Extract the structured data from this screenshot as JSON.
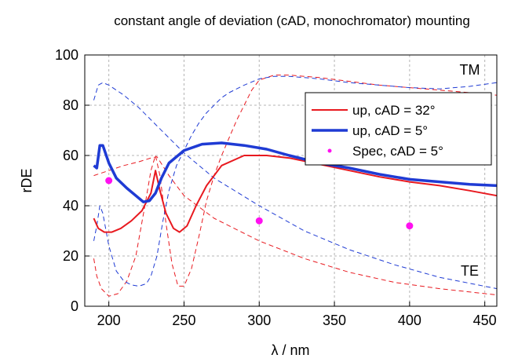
{
  "chart_data": {
    "type": "line",
    "title": "constant angle of deviation (cAD, monochromator) mounting",
    "xlabel": "λ / nm",
    "ylabel": "rDE",
    "xlim": [
      184,
      458
    ],
    "ylim": [
      0,
      100
    ],
    "xticks": [
      200,
      250,
      300,
      350,
      400,
      450
    ],
    "yticks": [
      0,
      20,
      40,
      60,
      80,
      100
    ],
    "grid": true,
    "legend_position": "top-right",
    "annotations": [
      {
        "text": "TM",
        "x": 440,
        "y": 94
      },
      {
        "text": "TE",
        "x": 440,
        "y": 14
      }
    ],
    "colors": {
      "red": "#e8191f",
      "blue": "#1f3bd4",
      "magenta": "#ff10f0"
    },
    "series": [
      {
        "name": "up, cAD = 32°",
        "style": "solid",
        "color": "#e8191f",
        "width": 2,
        "x": [
          190,
          193,
          197,
          202,
          208,
          215,
          222,
          228,
          231,
          234,
          238,
          243,
          247,
          252,
          258,
          265,
          275,
          290,
          305,
          320,
          340,
          360,
          380,
          400,
          420,
          440,
          458
        ],
        "y": [
          35,
          31,
          29.5,
          29.5,
          31,
          34,
          38,
          45,
          54,
          46,
          37,
          31,
          29.5,
          32,
          40,
          48,
          56,
          60,
          60,
          59,
          56.5,
          54,
          51.5,
          49.5,
          48,
          46,
          44
        ]
      },
      {
        "name": "up, cAD = 5°",
        "style": "solid",
        "color": "#1f3bd4",
        "width": 3.5,
        "x": [
          190,
          192,
          194,
          196,
          200,
          205,
          212,
          218,
          223,
          227,
          231,
          235,
          240,
          250,
          262,
          275,
          290,
          305,
          320,
          340,
          360,
          380,
          400,
          420,
          440,
          458
        ],
        "y": [
          56,
          55,
          64,
          64,
          57,
          51,
          47,
          44,
          41.5,
          42,
          45,
          51,
          57,
          62,
          64.5,
          65,
          64,
          62.5,
          60,
          57,
          55,
          52.5,
          50.5,
          49.5,
          48.5,
          48
        ]
      },
      {
        "name": "red TM dashed",
        "style": "dashed",
        "color": "#e8191f",
        "width": 1,
        "x": [
          190,
          192,
          195,
          200,
          206,
          212,
          218,
          224,
          228,
          231,
          234,
          238,
          242,
          246,
          250,
          255,
          260,
          265,
          270,
          275,
          280,
          285,
          290,
          295,
          300,
          310,
          320,
          330,
          340,
          360,
          380,
          400,
          420,
          440,
          458
        ],
        "y": [
          19,
          12,
          7,
          4,
          5,
          10,
          20,
          40,
          54,
          60,
          52,
          33,
          17,
          8,
          8,
          15,
          28,
          42,
          52,
          60,
          67,
          74,
          80,
          86,
          90,
          92,
          92,
          91.5,
          91,
          89.5,
          88,
          87,
          86,
          85,
          84
        ]
      },
      {
        "name": "blue TM dashed",
        "style": "dashed",
        "color": "#1f3bd4",
        "width": 1,
        "x": [
          190,
          192,
          194,
          196,
          200,
          205,
          210,
          215,
          220,
          225,
          228,
          232,
          236,
          240,
          245,
          250,
          255,
          260,
          265,
          270,
          275,
          280,
          290,
          300,
          310,
          320,
          340,
          360,
          380,
          400,
          420,
          440,
          458
        ],
        "y": [
          26,
          32,
          40,
          37,
          24,
          14,
          10,
          8.5,
          8,
          9,
          12,
          20,
          34,
          46,
          56,
          62,
          68,
          73,
          77,
          80,
          83,
          85,
          88,
          90.5,
          91.5,
          91.5,
          90.5,
          89,
          88,
          87,
          86.5,
          87.5,
          89
        ]
      },
      {
        "name": "red TE dashed",
        "style": "dashed",
        "color": "#e8191f",
        "width": 1,
        "x": [
          190,
          200,
          210,
          220,
          228,
          232,
          240,
          250,
          270,
          300,
          330,
          360,
          390,
          420,
          458
        ],
        "y": [
          52,
          54,
          56,
          57.5,
          59,
          59.5,
          52,
          44,
          35,
          26,
          19,
          13.5,
          9.5,
          7,
          4.5
        ]
      },
      {
        "name": "blue TE dashed",
        "style": "dashed",
        "color": "#1f3bd4",
        "width": 1,
        "x": [
          190,
          193,
          196,
          200,
          210,
          220,
          230,
          240,
          250,
          270,
          300,
          330,
          360,
          390,
          420,
          458
        ],
        "y": [
          82,
          88,
          89,
          88,
          84,
          79,
          73,
          67,
          61,
          51,
          40,
          30,
          22.5,
          16.5,
          11.5,
          7
        ]
      },
      {
        "name": "Spec, cAD = 5°",
        "style": "points",
        "color": "#ff10f0",
        "x": [
          200,
          300,
          400
        ],
        "y": [
          50,
          34,
          32
        ]
      }
    ],
    "legend": [
      {
        "label": "up, cAD = 32°",
        "color": "#e8191f",
        "kind": "line",
        "width": 2
      },
      {
        "label": "up, cAD = 5°",
        "color": "#1f3bd4",
        "kind": "line",
        "width": 3.5
      },
      {
        "label": "Spec, cAD = 5°",
        "color": "#ff10f0",
        "kind": "point"
      }
    ]
  }
}
